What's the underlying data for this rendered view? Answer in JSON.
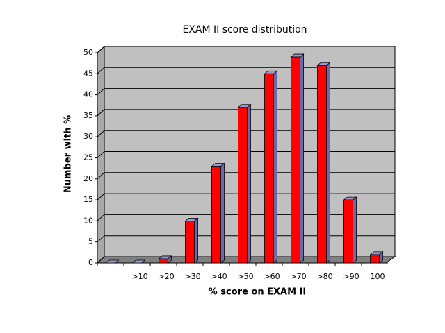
{
  "chart_data": {
    "type": "bar",
    "title": "EXAM II score distribution",
    "x_label": "% score on EXAM II",
    "y_label": "Number with %",
    "categories": [
      null,
      ">10",
      ">20",
      ">30",
      ">40",
      ">50",
      ">60",
      ">70",
      ">80",
      ">90",
      "100"
    ],
    "values": [
      0,
      0,
      1,
      10,
      23,
      37,
      45,
      49,
      47,
      15,
      2
    ],
    "color": "#ff0000",
    "ylim": [
      0,
      50
    ],
    "yticks": [
      0,
      5,
      10,
      15,
      20,
      25,
      30,
      35,
      40,
      45,
      50
    ],
    "grid": true
  }
}
